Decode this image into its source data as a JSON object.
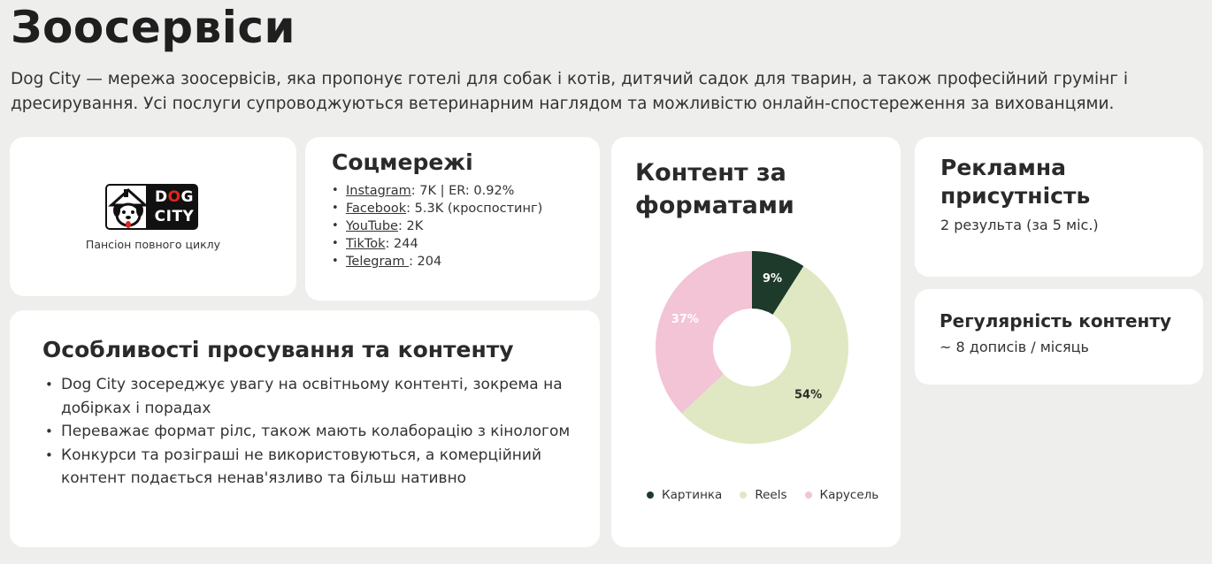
{
  "page": {
    "title": "Зоосервіси",
    "intro": "Dog City — мережа зоосервісів, яка пропонує готелі для собак і котів, дитячий садок для тварин, а також професійний грумінг і дресирування. Усі послуги супроводжуються ветеринарним наглядом та можливістю онлайн-спостереження за вихованцями."
  },
  "logo_card": {
    "logo_line1_a": "D",
    "logo_line1_b": "O",
    "logo_line1_c": "G",
    "logo_line2": "CITY",
    "caption": "Пансіон повного циклу"
  },
  "social": {
    "title": "Соцмережі",
    "items": [
      {
        "name": "Instagram",
        "detail": ": 7K | ER: 0.92%"
      },
      {
        "name": "Facebook",
        "detail": ": 5.3K (кроспостинг)"
      },
      {
        "name": "YouTube",
        "detail": ": 2K"
      },
      {
        "name": "TikTok",
        "detail": ": 244"
      },
      {
        "name": "Telegram ",
        "detail": ": 204"
      }
    ]
  },
  "features": {
    "title": "Особливості просування та контенту",
    "items": [
      "Dog City зосереджує увагу на освітньому контенті, зокрема на добірках і порадах",
      "Переважає формат рілс, також мають колаборацію з кінологом",
      "Конкурси та розіграші не використовуються, а комерційний контент подається ненав'язливо та більш нативно"
    ]
  },
  "ads": {
    "title": "Рекламна присутність",
    "subtitle": "2 результа (за 5 міс.)"
  },
  "regularity": {
    "title": "Регулярність контенту",
    "subtitle": "~ 8 дописів / місяць"
  },
  "chart_data": {
    "type": "pie",
    "title": "Контент за форматами",
    "donut": true,
    "categories": [
      "Картинка",
      "Reels",
      "Карусель"
    ],
    "values": [
      9,
      54,
      37
    ],
    "labels": [
      "9%",
      "54%",
      "37%"
    ],
    "colors": [
      "#1d3a2a",
      "#dfe8c2",
      "#f3c3d6"
    ],
    "label_colors": [
      "#ffffff",
      "#2b2b2b",
      "#ffffff"
    ],
    "legend_position": "bottom"
  }
}
